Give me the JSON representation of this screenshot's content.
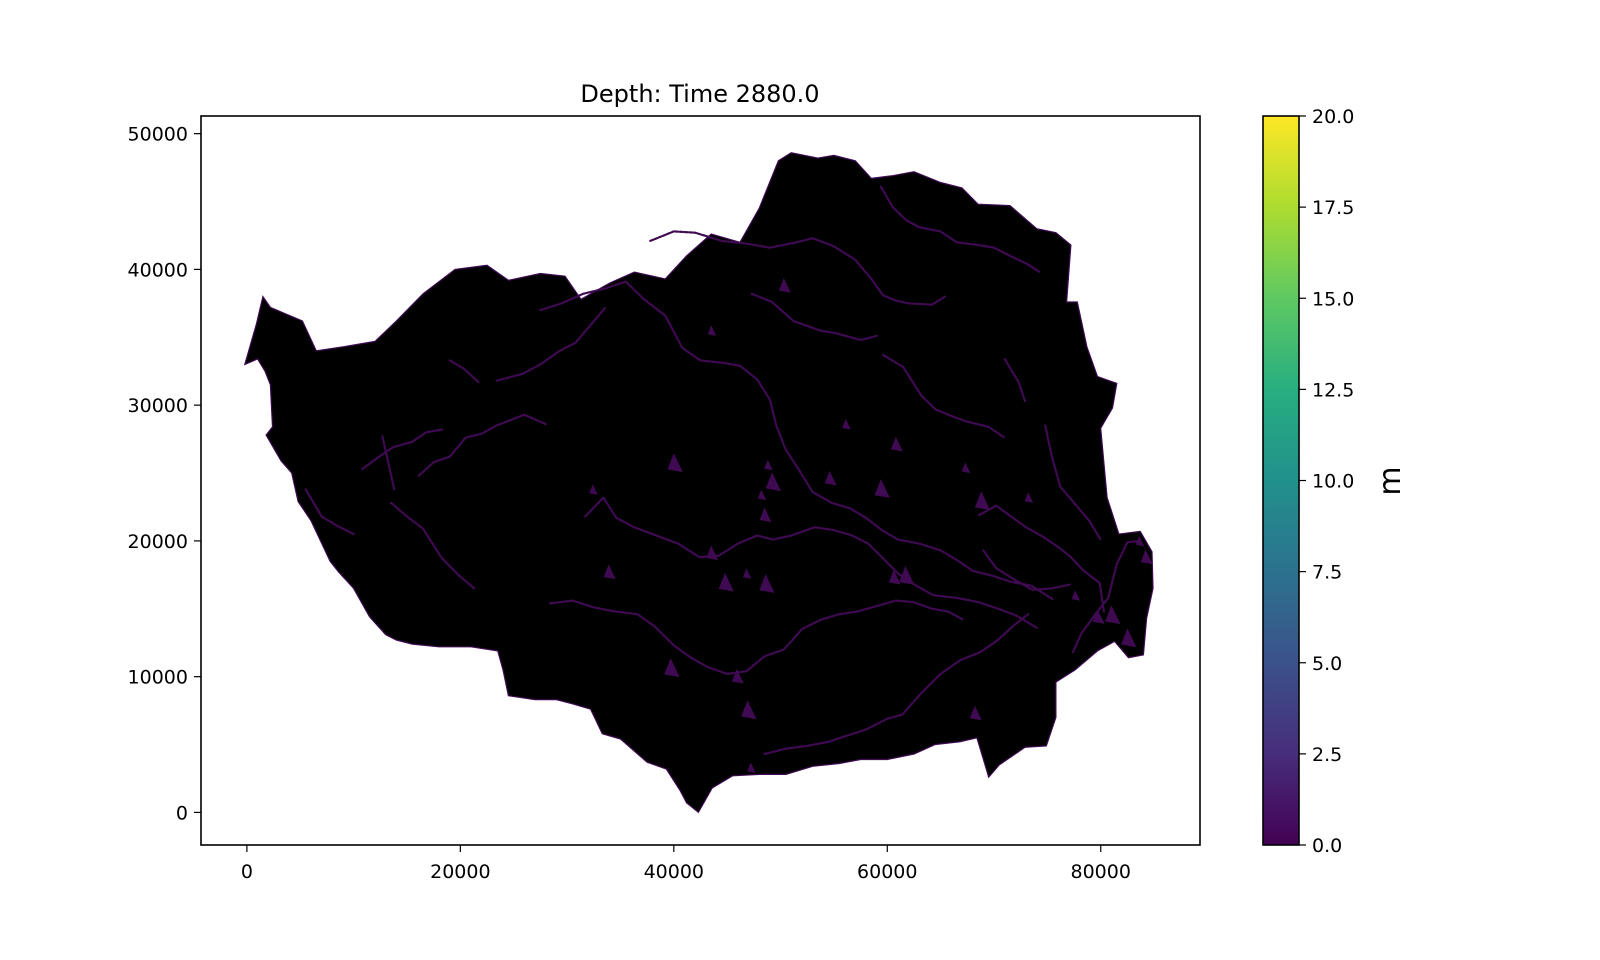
{
  "chart_data": {
    "type": "heatmap",
    "title": "Depth: Time 2880.0",
    "xlabel": "",
    "ylabel": "",
    "xlim": [
      -4300,
      89300
    ],
    "ylim": [
      -2400,
      51300
    ],
    "x_ticks": [
      0,
      20000,
      40000,
      60000,
      80000
    ],
    "x_tick_labels": [
      "0",
      "20000",
      "40000",
      "60000",
      "80000"
    ],
    "y_ticks": [
      0,
      10000,
      20000,
      30000,
      40000,
      50000
    ],
    "y_tick_labels": [
      "0",
      "10000",
      "20000",
      "30000",
      "40000",
      "50000"
    ],
    "colorbar": {
      "label": "m",
      "min": 0.0,
      "max": 20.0,
      "colormap": "viridis",
      "ticks": [
        0,
        2.5,
        5,
        7.5,
        10,
        12.5,
        15,
        17.5,
        20
      ],
      "tick_labels": [
        "0.0",
        "2.5",
        "5.0",
        "7.5",
        "10.0",
        "12.5",
        "15.0",
        "17.5",
        "20.0"
      ],
      "colors": [
        "#440154",
        "#472d7b",
        "#3b528b",
        "#2c728e",
        "#21918c",
        "#28ae80",
        "#5ec962",
        "#addc30",
        "#fde725"
      ]
    },
    "domain_fill_color": "#000000",
    "channel_color": "#3f0a52",
    "catchment_boundary": [
      [
        -200,
        33000
      ],
      [
        900,
        36000
      ],
      [
        1500,
        38000
      ],
      [
        2200,
        37200
      ],
      [
        5200,
        36200
      ],
      [
        6500,
        34000
      ],
      [
        9000,
        34300
      ],
      [
        12000,
        34700
      ],
      [
        14000,
        36200
      ],
      [
        16500,
        38200
      ],
      [
        19500,
        40000
      ],
      [
        22500,
        40300
      ],
      [
        24500,
        39200
      ],
      [
        27500,
        39700
      ],
      [
        29800,
        39500
      ],
      [
        31300,
        37800
      ],
      [
        34000,
        39000
      ],
      [
        36300,
        39800
      ],
      [
        39200,
        39300
      ],
      [
        41200,
        41000
      ],
      [
        43500,
        42600
      ],
      [
        46200,
        42000
      ],
      [
        48000,
        44500
      ],
      [
        49800,
        48000
      ],
      [
        51000,
        48600
      ],
      [
        53500,
        48200
      ],
      [
        55000,
        48400
      ],
      [
        57000,
        48000
      ],
      [
        58500,
        46700
      ],
      [
        60500,
        46900
      ],
      [
        62500,
        47200
      ],
      [
        65000,
        46400
      ],
      [
        67000,
        46000
      ],
      [
        68500,
        44800
      ],
      [
        71500,
        44700
      ],
      [
        74000,
        43000
      ],
      [
        75800,
        42700
      ],
      [
        77200,
        41800
      ],
      [
        76800,
        37600
      ],
      [
        77800,
        37600
      ],
      [
        78700,
        34300
      ],
      [
        79700,
        32100
      ],
      [
        81500,
        31600
      ],
      [
        81100,
        29800
      ],
      [
        80000,
        28300
      ],
      [
        80600,
        23200
      ],
      [
        81700,
        20500
      ],
      [
        83700,
        20700
      ],
      [
        84800,
        19200
      ],
      [
        84900,
        16500
      ],
      [
        84300,
        14300
      ],
      [
        84000,
        11600
      ],
      [
        82600,
        11400
      ],
      [
        81300,
        12600
      ],
      [
        79700,
        11900
      ],
      [
        77600,
        10500
      ],
      [
        75800,
        9600
      ],
      [
        75800,
        7000
      ],
      [
        74900,
        4900
      ],
      [
        72900,
        4800
      ],
      [
        70500,
        3500
      ],
      [
        69500,
        2600
      ],
      [
        68400,
        5500
      ],
      [
        66800,
        5200
      ],
      [
        64500,
        5000
      ],
      [
        62500,
        4300
      ],
      [
        60000,
        3900
      ],
      [
        57500,
        3900
      ],
      [
        55500,
        3600
      ],
      [
        53000,
        3400
      ],
      [
        50500,
        2800
      ],
      [
        48000,
        2800
      ],
      [
        45500,
        2700
      ],
      [
        43600,
        1800
      ],
      [
        42300,
        0
      ],
      [
        41200,
        700
      ],
      [
        40600,
        1600
      ],
      [
        39300,
        3200
      ],
      [
        37500,
        3700
      ],
      [
        35000,
        5400
      ],
      [
        33300,
        5800
      ],
      [
        32200,
        7600
      ],
      [
        30500,
        8000
      ],
      [
        29000,
        8300
      ],
      [
        27000,
        8300
      ],
      [
        24500,
        8600
      ],
      [
        24000,
        10500
      ],
      [
        23500,
        11900
      ],
      [
        21000,
        12200
      ],
      [
        18000,
        12200
      ],
      [
        15500,
        12400
      ],
      [
        14000,
        12700
      ],
      [
        13000,
        13100
      ],
      [
        11500,
        14400
      ],
      [
        10000,
        16500
      ],
      [
        8600,
        17700
      ],
      [
        7800,
        18500
      ],
      [
        6900,
        20000
      ],
      [
        6000,
        21500
      ],
      [
        4800,
        22900
      ],
      [
        4200,
        25000
      ],
      [
        3200,
        25900
      ],
      [
        1800,
        27800
      ],
      [
        2400,
        28400
      ],
      [
        2300,
        30000
      ],
      [
        2200,
        31500
      ],
      [
        1700,
        32500
      ],
      [
        1000,
        33400
      ],
      [
        -200,
        33000
      ]
    ],
    "channel_network": [
      [
        [
          10800,
          25300
        ],
        [
          12400,
          26200
        ],
        [
          13700,
          26900
        ],
        [
          15500,
          27300
        ],
        [
          16800,
          28000
        ],
        [
          18300,
          28200
        ]
      ],
      [
        [
          16100,
          24800
        ],
        [
          17500,
          25800
        ],
        [
          19000,
          26200
        ],
        [
          20500,
          27600
        ],
        [
          22000,
          27900
        ],
        [
          23400,
          28500
        ],
        [
          26000,
          29300
        ],
        [
          28000,
          28600
        ]
      ],
      [
        [
          23400,
          31800
        ],
        [
          25800,
          32300
        ],
        [
          27500,
          33000
        ],
        [
          29300,
          34000
        ],
        [
          30800,
          34600
        ],
        [
          33600,
          37200
        ]
      ],
      [
        [
          27500,
          37000
        ],
        [
          29500,
          37500
        ],
        [
          31500,
          38200
        ],
        [
          33600,
          38600
        ],
        [
          35500,
          39100
        ],
        [
          37200,
          37800
        ],
        [
          39200,
          36600
        ],
        [
          40800,
          34200
        ],
        [
          42500,
          33300
        ],
        [
          44800,
          33100
        ],
        [
          46200,
          32900
        ],
        [
          47800,
          31900
        ],
        [
          49000,
          30400
        ],
        [
          49600,
          28500
        ],
        [
          50500,
          26700
        ],
        [
          51500,
          25500
        ],
        [
          53000,
          23600
        ],
        [
          54800,
          22800
        ],
        [
          56500,
          22400
        ],
        [
          58000,
          21700
        ],
        [
          59500,
          20800
        ],
        [
          61000,
          20100
        ],
        [
          63000,
          19800
        ],
        [
          65000,
          19300
        ],
        [
          66500,
          18600
        ],
        [
          68000,
          17800
        ],
        [
          70000,
          17400
        ],
        [
          71500,
          17000
        ],
        [
          73500,
          16700
        ],
        [
          75500,
          15700
        ]
      ],
      [
        [
          37800,
          42100
        ],
        [
          40000,
          42800
        ],
        [
          42000,
          42700
        ],
        [
          44500,
          42100
        ],
        [
          46800,
          41900
        ],
        [
          49000,
          41600
        ],
        [
          51500,
          42000
        ],
        [
          53000,
          42300
        ],
        [
          55000,
          41700
        ],
        [
          57000,
          40700
        ],
        [
          58500,
          39300
        ],
        [
          59600,
          38100
        ],
        [
          60800,
          37700
        ],
        [
          62000,
          37500
        ],
        [
          64200,
          37400
        ],
        [
          65400,
          38000
        ]
      ],
      [
        [
          47300,
          38200
        ],
        [
          49200,
          37600
        ],
        [
          51200,
          36200
        ],
        [
          53700,
          35500
        ],
        [
          55200,
          35300
        ],
        [
          57500,
          34800
        ],
        [
          59000,
          35100
        ]
      ],
      [
        [
          59600,
          33700
        ],
        [
          61500,
          32800
        ],
        [
          63200,
          30700
        ],
        [
          64500,
          29700
        ],
        [
          66000,
          29200
        ],
        [
          67400,
          28800
        ],
        [
          69500,
          28400
        ],
        [
          71000,
          27600
        ]
      ],
      [
        [
          59400,
          46100
        ],
        [
          60500,
          44600
        ],
        [
          61800,
          43600
        ],
        [
          63000,
          43100
        ],
        [
          65000,
          42800
        ],
        [
          66500,
          42000
        ],
        [
          68500,
          41800
        ],
        [
          70000,
          41600
        ],
        [
          71500,
          41000
        ],
        [
          73100,
          40400
        ],
        [
          74300,
          39800
        ]
      ],
      [
        [
          31700,
          21800
        ],
        [
          33400,
          23200
        ],
        [
          34600,
          21700
        ],
        [
          36300,
          21000
        ],
        [
          38000,
          20500
        ],
        [
          40400,
          19800
        ],
        [
          42400,
          18800
        ],
        [
          44200,
          18900
        ],
        [
          46000,
          19800
        ],
        [
          47800,
          20400
        ],
        [
          49300,
          20100
        ],
        [
          51000,
          20400
        ],
        [
          53200,
          21000
        ],
        [
          55000,
          20800
        ],
        [
          56700,
          20400
        ],
        [
          58200,
          19800
        ],
        [
          59500,
          18800
        ],
        [
          61000,
          17600
        ],
        [
          62500,
          16800
        ],
        [
          64300,
          16000
        ],
        [
          66500,
          15800
        ],
        [
          68500,
          15500
        ],
        [
          70400,
          15000
        ],
        [
          72100,
          14500
        ],
        [
          74000,
          13600
        ]
      ],
      [
        [
          28400,
          15400
        ],
        [
          30500,
          15600
        ],
        [
          32500,
          15100
        ],
        [
          34500,
          14800
        ],
        [
          36600,
          14600
        ],
        [
          38200,
          13700
        ],
        [
          40000,
          12300
        ],
        [
          41600,
          11400
        ],
        [
          43200,
          10700
        ],
        [
          45000,
          10200
        ],
        [
          46800,
          10400
        ],
        [
          48500,
          11500
        ],
        [
          50300,
          12000
        ],
        [
          52000,
          13500
        ],
        [
          53800,
          14200
        ],
        [
          55500,
          14600
        ],
        [
          57200,
          14800
        ],
        [
          59000,
          15200
        ],
        [
          60800,
          15600
        ],
        [
          62400,
          15500
        ],
        [
          64200,
          15000
        ],
        [
          65700,
          14800
        ],
        [
          67100,
          14200
        ]
      ],
      [
        [
          48500,
          4300
        ],
        [
          50500,
          4700
        ],
        [
          52500,
          4900
        ],
        [
          54500,
          5200
        ],
        [
          56400,
          5700
        ],
        [
          58000,
          6100
        ],
        [
          60000,
          6900
        ],
        [
          61400,
          7200
        ],
        [
          63200,
          8800
        ],
        [
          65000,
          10200
        ],
        [
          66800,
          11200
        ],
        [
          68700,
          11800
        ],
        [
          70200,
          12600
        ],
        [
          71900,
          13800
        ],
        [
          73200,
          14600
        ]
      ],
      [
        [
          77400,
          11800
        ],
        [
          78200,
          13200
        ],
        [
          79500,
          14600
        ],
        [
          80700,
          15800
        ],
        [
          81500,
          18300
        ],
        [
          82500,
          19900
        ],
        [
          83600,
          20000
        ]
      ],
      [
        [
          68600,
          21900
        ],
        [
          70200,
          22600
        ],
        [
          71600,
          21800
        ],
        [
          73000,
          21000
        ],
        [
          74600,
          20300
        ],
        [
          76100,
          19500
        ],
        [
          77200,
          18800
        ],
        [
          78400,
          17800
        ],
        [
          79900,
          16900
        ],
        [
          80300,
          14800
        ]
      ],
      [
        [
          69000,
          19300
        ],
        [
          70200,
          18000
        ],
        [
          71800,
          17200
        ],
        [
          73600,
          16400
        ],
        [
          75400,
          16500
        ],
        [
          77200,
          16800
        ]
      ],
      [
        [
          74800,
          28500
        ],
        [
          75400,
          26300
        ],
        [
          76200,
          24000
        ],
        [
          77500,
          22800
        ],
        [
          78900,
          21500
        ],
        [
          80000,
          20100
        ]
      ],
      [
        [
          5500,
          23800
        ],
        [
          7000,
          21800
        ],
        [
          8500,
          21100
        ],
        [
          10000,
          20500
        ]
      ],
      [
        [
          13500,
          22800
        ],
        [
          15000,
          21800
        ],
        [
          16500,
          20900
        ],
        [
          18200,
          18800
        ],
        [
          19800,
          17500
        ],
        [
          21300,
          16500
        ]
      ],
      [
        [
          12700,
          27700
        ],
        [
          13300,
          25600
        ],
        [
          13800,
          23800
        ]
      ],
      [
        [
          19000,
          33300
        ],
        [
          20300,
          32700
        ],
        [
          21700,
          31700
        ]
      ],
      [
        [
          71000,
          33400
        ],
        [
          72300,
          31700
        ],
        [
          72900,
          30300
        ]
      ]
    ],
    "triangle_patches": [
      [
        43500,
        35400
      ],
      [
        43500,
        19000
      ],
      [
        44800,
        16800
      ],
      [
        46800,
        17500
      ],
      [
        48500,
        21800
      ],
      [
        48600,
        16700
      ],
      [
        48800,
        25500
      ],
      [
        50300,
        38700
      ],
      [
        49200,
        24200
      ],
      [
        48200,
        23300
      ],
      [
        45900,
        9900
      ],
      [
        46900,
        7400
      ],
      [
        47200,
        3200
      ],
      [
        60600,
        17200
      ],
      [
        61700,
        17300
      ],
      [
        56100,
        28500
      ],
      [
        60800,
        27000
      ],
      [
        59400,
        23700
      ],
      [
        67300,
        25300
      ],
      [
        68200,
        7200
      ],
      [
        68800,
        22800
      ],
      [
        77600,
        15900
      ],
      [
        79700,
        14300
      ],
      [
        81000,
        14400
      ],
      [
        83600,
        19900
      ],
      [
        84200,
        18700
      ],
      [
        82500,
        12700
      ],
      [
        73200,
        23100
      ],
      [
        54600,
        24500
      ],
      [
        40000,
        25600
      ],
      [
        32400,
        23700
      ],
      [
        33900,
        17600
      ],
      [
        39700,
        10500
      ]
    ]
  }
}
